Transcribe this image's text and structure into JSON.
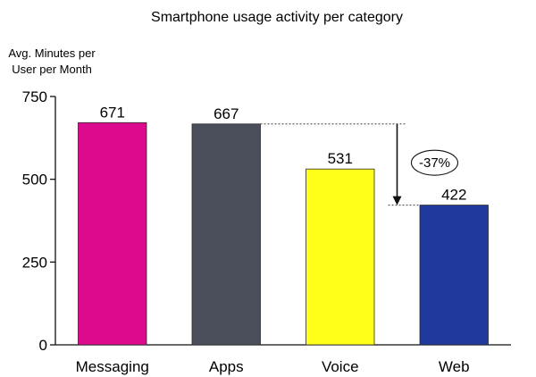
{
  "chart_data": {
    "type": "bar",
    "title": "Smartphone usage activity per category",
    "ylabel": [
      "Avg. Minutes per",
      "User per Month"
    ],
    "xlabel": "",
    "categories": [
      "Messaging",
      "Apps",
      "Voice",
      "Web"
    ],
    "values": [
      671,
      667,
      531,
      422
    ],
    "value_labels": [
      "671",
      "667",
      "531",
      "422"
    ],
    "colors": [
      "#DC0A8C",
      "#4B4F5C",
      "#FFFF1A",
      "#1F3A9C"
    ],
    "ylim": [
      0,
      750
    ],
    "yticks": [
      0,
      250,
      500,
      750
    ],
    "ytick_labels": [
      "0",
      "250",
      "500",
      "750"
    ],
    "grid": false,
    "legend": "none",
    "annotation": {
      "text": "-37%",
      "from_category": "Apps",
      "to_category": "Web",
      "style": "dotted lines with downward arrow and circled label"
    }
  }
}
